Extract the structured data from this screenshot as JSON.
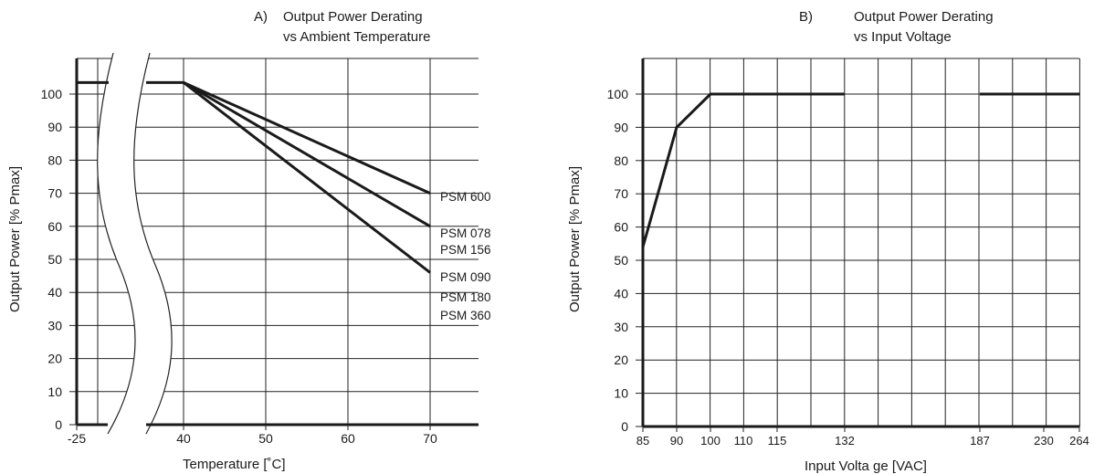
{
  "chart_data": [
    {
      "type": "line",
      "panel_letter": "A)",
      "title": "Output Power Derating",
      "subtitle": "vs Ambient Temperature",
      "xlabel": "Temperature [˚C]",
      "ylabel": "Output Power [% Pmax]",
      "x_ticks": [
        "-25",
        "40",
        "50",
        "60",
        "70"
      ],
      "y_ticks": [
        0,
        10,
        20,
        30,
        40,
        50,
        60,
        70,
        80,
        90,
        100
      ],
      "ylim": [
        0,
        100
      ],
      "xlim": [
        -25,
        75
      ],
      "axis_break": {
        "from": -25,
        "to": 40
      },
      "grid": true,
      "series": [
        {
          "name": "PSM 600",
          "points": [
            [
              -25,
              103.5
            ],
            [
              40,
              103.5
            ],
            [
              70,
              70
            ]
          ]
        },
        {
          "name": "PSM 078\nPSM 156",
          "points": [
            [
              -25,
              103.5
            ],
            [
              40,
              103.5
            ],
            [
              70,
              60
            ]
          ]
        },
        {
          "name": "PSM 090\nPSM 180\nPSM 360",
          "points": [
            [
              -25,
              103.5
            ],
            [
              40,
              103.5
            ],
            [
              70,
              46
            ]
          ]
        }
      ],
      "annotations": [
        {
          "text": "PSM 600"
        },
        {
          "text": "PSM 078"
        },
        {
          "text": "PSM 156"
        },
        {
          "text": "PSM 090"
        },
        {
          "text": "PSM 180"
        },
        {
          "text": "PSM 360"
        }
      ]
    },
    {
      "type": "line",
      "panel_letter": "B)",
      "title": "Output Power Derating",
      "subtitle": "vs Input Voltage",
      "xlabel": "Input Volta ge [VAC]",
      "ylabel": "Output Power [% Pmax]",
      "x_ticks": [
        "85",
        "90",
        "100",
        "110",
        "115",
        "132",
        "187",
        "230",
        "264"
      ],
      "y_ticks": [
        0,
        10,
        20,
        30,
        40,
        50,
        60,
        70,
        80,
        90,
        100
      ],
      "ylim": [
        0,
        100
      ],
      "grid": true,
      "series": [
        {
          "segments": [
            [
              [
                85,
                54
              ],
              [
                90,
                90
              ],
              [
                100,
                100
              ],
              [
                132,
                100
              ]
            ],
            [
              [
                187,
                100
              ],
              [
                264,
                100
              ]
            ]
          ]
        }
      ]
    }
  ]
}
